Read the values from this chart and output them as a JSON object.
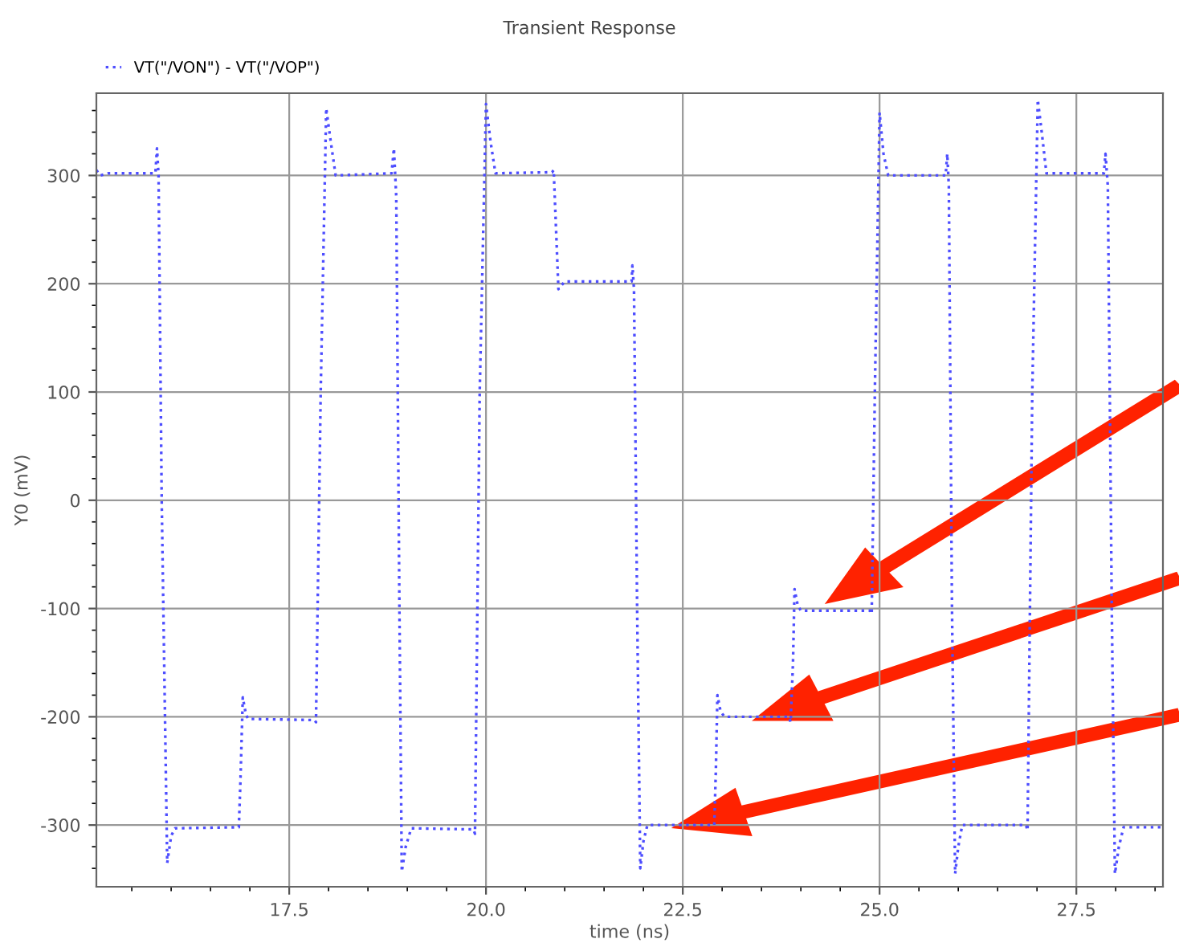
{
  "chart_data": {
    "type": "line",
    "title": "Transient Response",
    "xlabel": "time (ns)",
    "ylabel": "Y0 (mV)",
    "xlim": [
      15.05,
      28.6
    ],
    "ylim": [
      -357,
      376
    ],
    "xticks": [
      {
        "value": 17.5,
        "label": "17.5"
      },
      {
        "value": 20,
        "label": "20.0"
      },
      {
        "value": 22.5,
        "label": "22.5"
      },
      {
        "value": 25,
        "label": "25.0"
      },
      {
        "value": 27.5,
        "label": "27.5"
      }
    ],
    "yticks": [
      -300,
      -200,
      -100,
      0,
      100,
      200,
      300
    ],
    "grid": true,
    "legend": "top left",
    "line_style": "dotted",
    "series": [
      {
        "name": "VT(\"/VON\") - VT(\"/VOP\")",
        "color": "#4d4dff",
        "x": [
          15.05,
          15.1,
          15.2,
          15.8,
          15.82,
          15.84,
          15.88,
          15.95,
          16.0,
          16.05,
          16.86,
          16.88,
          16.91,
          16.95,
          16.98,
          17.82,
          17.84,
          17.9,
          17.97,
          18.03,
          18.09,
          18.8,
          18.83,
          18.86,
          18.9,
          18.93,
          18.98,
          19.05,
          19.84,
          19.86,
          19.92,
          20.0,
          20.06,
          20.12,
          20.84,
          20.86,
          20.89,
          20.92,
          21.0,
          21.85,
          21.86,
          21.88,
          21.92,
          21.96,
          22.0,
          22.05,
          22.9,
          22.92,
          22.94,
          22.98,
          23.03,
          23.85,
          23.87,
          23.9,
          23.92,
          23.96,
          24.0,
          24.88,
          24.9,
          24.94,
          25.0,
          25.05,
          25.11,
          25.84,
          25.86,
          25.88,
          25.92,
          25.96,
          26.0,
          26.05,
          26.86,
          26.88,
          26.94,
          27.01,
          27.06,
          27.12,
          27.85,
          27.87,
          27.9,
          27.95,
          27.99,
          28.04,
          28.1,
          28.6
        ],
        "values": [
          305,
          300,
          302,
          302,
          325,
          300,
          0,
          -335,
          -310,
          -303,
          -302,
          -260,
          -182,
          -198,
          -202,
          -203,
          -205,
          100,
          362,
          330,
          300,
          302,
          325,
          280,
          -100,
          -343,
          -320,
          -303,
          -304,
          -308,
          100,
          366,
          330,
          302,
          303,
          305,
          250,
          195,
          202,
          202,
          217,
          195,
          -100,
          -340,
          -315,
          -300,
          -300,
          -250,
          -180,
          -195,
          -200,
          -200,
          -205,
          -150,
          -82,
          -97,
          -102,
          -102,
          -105,
          100,
          358,
          320,
          300,
          300,
          320,
          290,
          -100,
          -345,
          -320,
          -300,
          -300,
          -305,
          100,
          370,
          340,
          302,
          302,
          320,
          290,
          -100,
          -345,
          -320,
          -302,
          -302
        ]
      }
    ]
  }
}
